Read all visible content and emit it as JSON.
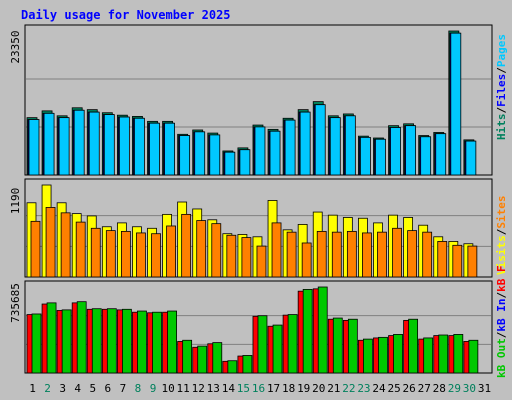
{
  "title": "Daily usage for November 2025",
  "colors": {
    "background": "#c0c0c0",
    "panel": "#c0c0c0",
    "grid": "#808080",
    "title": "#0000ff",
    "hits": "#00805c",
    "files": "#0000ff",
    "pages": "#00c8ff",
    "visits": "#ffff00",
    "sites": "#ff8000",
    "kb_in": "#00c800",
    "kb_out": "#ff0000",
    "separator": "#000000",
    "day_weekend": "#00805c",
    "day_weekday": "#000000"
  },
  "side_labels": {
    "top": [
      {
        "text": "Hits",
        "color_key": "hits"
      },
      {
        "text": "/",
        "color_key": "separator"
      },
      {
        "text": "Files",
        "color_key": "files"
      },
      {
        "text": "/",
        "color_key": "separator"
      },
      {
        "text": "Pages",
        "color_key": "pages"
      }
    ],
    "middle": [
      {
        "text": "Visits",
        "color_key": "visits"
      },
      {
        "text": "/",
        "color_key": "separator"
      },
      {
        "text": "Sites",
        "color_key": "sites"
      }
    ],
    "bottom": [
      {
        "text": "kB Out",
        "color_key": "kb_in"
      },
      {
        "text": "/",
        "color_key": "separator"
      },
      {
        "text": "kB In",
        "color_key": "files"
      },
      {
        "text": "/",
        "color_key": "separator"
      },
      {
        "text": "kB F",
        "color_key": "kb_out"
      }
    ]
  },
  "chart_data": [
    {
      "type": "bar",
      "panel": "hits-files-pages",
      "ymax_label": "23350",
      "ylim": [
        0,
        23350
      ],
      "categories": [
        "1",
        "2",
        "3",
        "4",
        "5",
        "6",
        "7",
        "8",
        "9",
        "10",
        "11",
        "12",
        "13",
        "14",
        "15",
        "16",
        "17",
        "18",
        "19",
        "20",
        "21",
        "22",
        "23",
        "24",
        "25",
        "26",
        "27",
        "28",
        "29",
        "30",
        "31"
      ],
      "weekend_days": [
        "2",
        "8",
        "9",
        "15",
        "16",
        "22",
        "23",
        "29",
        "30"
      ],
      "series": [
        {
          "name": "Hits",
          "values": [
            9300,
            10400,
            9600,
            10900,
            10600,
            10100,
            9700,
            9500,
            8700,
            8700,
            6600,
            7300,
            6800,
            3900,
            4400,
            8100,
            7400,
            9200,
            10600,
            11900,
            9600,
            9900,
            6300,
            6000,
            8000,
            8300,
            6400,
            6900,
            23350,
            5700,
            null
          ]
        },
        {
          "name": "Files",
          "values": [
            9000,
            10000,
            9300,
            10500,
            10200,
            9800,
            9400,
            9200,
            8400,
            8400,
            6400,
            7000,
            6500,
            3700,
            4100,
            7800,
            7100,
            8900,
            10200,
            11400,
            9300,
            9600,
            6100,
            5800,
            7700,
            8000,
            6200,
            6700,
            23000,
            5500,
            null
          ]
        },
        {
          "name": "Pages",
          "values": [
            9000,
            10000,
            9300,
            10500,
            10200,
            9800,
            9400,
            9200,
            8400,
            8400,
            6400,
            7000,
            6500,
            3700,
            4100,
            7800,
            7100,
            8900,
            10200,
            11400,
            9300,
            9600,
            6100,
            5800,
            7700,
            8000,
            6200,
            6700,
            23000,
            5500,
            null
          ]
        }
      ]
    },
    {
      "type": "bar",
      "panel": "visits-sites",
      "ymax_label": "1190",
      "ylim": [
        0,
        1190
      ],
      "categories": [
        "1",
        "2",
        "3",
        "4",
        "5",
        "6",
        "7",
        "8",
        "9",
        "10",
        "11",
        "12",
        "13",
        "14",
        "15",
        "16",
        "17",
        "18",
        "19",
        "20",
        "21",
        "22",
        "23",
        "24",
        "25",
        "26",
        "27",
        "28",
        "29",
        "30",
        "31"
      ],
      "series": [
        {
          "name": "Visits",
          "values": [
            960,
            1190,
            960,
            820,
            790,
            650,
            700,
            650,
            630,
            810,
            970,
            880,
            740,
            560,
            550,
            520,
            990,
            610,
            680,
            840,
            800,
            770,
            760,
            700,
            800,
            770,
            670,
            520,
            460,
            430,
            null
          ]
        },
        {
          "name": "Sites",
          "values": [
            720,
            900,
            830,
            710,
            630,
            600,
            590,
            570,
            560,
            660,
            810,
            730,
            690,
            540,
            510,
            400,
            700,
            580,
            440,
            590,
            580,
            590,
            570,
            580,
            630,
            600,
            580,
            460,
            410,
            400,
            null
          ]
        }
      ]
    },
    {
      "type": "bar",
      "panel": "kbin-kbout",
      "ymax_label": "735685",
      "ylim": [
        0,
        735685
      ],
      "categories": [
        "1",
        "2",
        "3",
        "4",
        "5",
        "6",
        "7",
        "8",
        "9",
        "10",
        "11",
        "12",
        "13",
        "14",
        "15",
        "16",
        "17",
        "18",
        "19",
        "20",
        "21",
        "22",
        "23",
        "24",
        "25",
        "26",
        "27",
        "28",
        "29",
        "30",
        "31"
      ],
      "series": [
        {
          "name": "kB F",
          "values": [
            500000,
            590000,
            535000,
            600000,
            545000,
            545000,
            540000,
            520000,
            515000,
            520000,
            270000,
            220000,
            250000,
            100000,
            145000,
            485000,
            400000,
            495000,
            700000,
            720000,
            460000,
            450000,
            280000,
            300000,
            320000,
            450000,
            290000,
            320000,
            320000,
            270000,
            null
          ]
        },
        {
          "name": "kB In",
          "values": [
            505000,
            600000,
            540000,
            610000,
            550000,
            550000,
            545000,
            530000,
            520000,
            530000,
            280000,
            230000,
            260000,
            105000,
            150000,
            490000,
            410000,
            500000,
            715000,
            735685,
            470000,
            460000,
            290000,
            305000,
            330000,
            460000,
            300000,
            325000,
            330000,
            280000,
            null
          ]
        }
      ]
    }
  ]
}
